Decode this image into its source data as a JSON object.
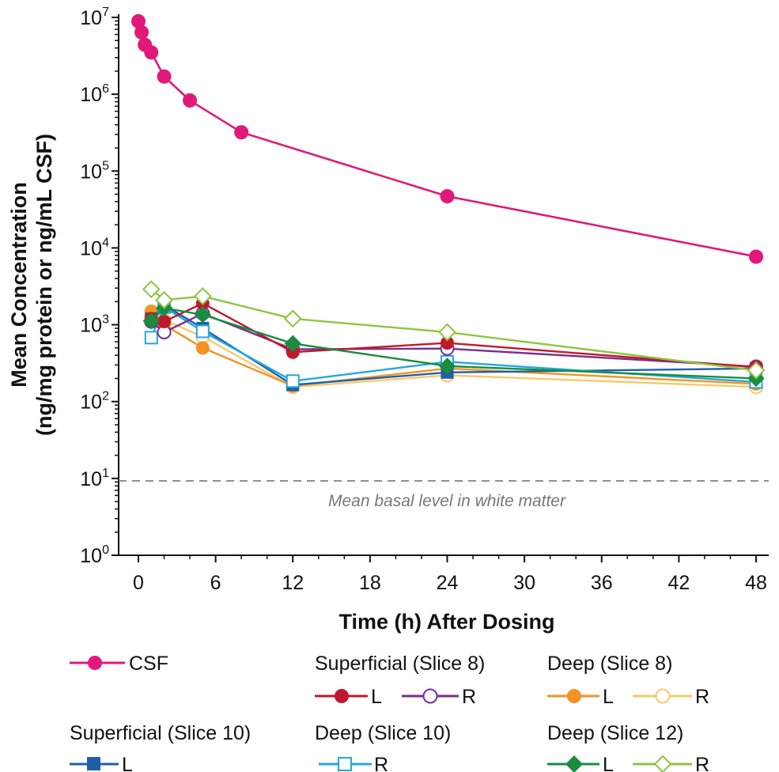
{
  "chart_data": {
    "type": "line",
    "xlabel": "Time (h) After Dosing",
    "ylabel_line1": "Mean Concentration",
    "ylabel_line2": "(ng/mg protein or ng/mL CSF)",
    "x_ticks": [
      0,
      6,
      12,
      18,
      24,
      30,
      36,
      42,
      48
    ],
    "x_range": [
      -1,
      49
    ],
    "y_scale": "log",
    "y_range": [
      1,
      10000000
    ],
    "y_ticks": [
      {
        "base": "10",
        "exp": "0",
        "value": 1
      },
      {
        "base": "10",
        "exp": "1",
        "value": 10
      },
      {
        "base": "10",
        "exp": "2",
        "value": 100
      },
      {
        "base": "10",
        "exp": "3",
        "value": 1000
      },
      {
        "base": "10",
        "exp": "4",
        "value": 10000
      },
      {
        "base": "10",
        "exp": "5",
        "value": 100000
      },
      {
        "base": "10",
        "exp": "6",
        "value": 1000000
      },
      {
        "base": "10",
        "exp": "7",
        "value": 10000000
      }
    ],
    "reference_line": {
      "value": 9.3,
      "label": "Mean basal level in white matter",
      "color": "#777777"
    },
    "grid": false,
    "series": [
      {
        "id": "csf",
        "color": "#e0197a",
        "marker": "circle",
        "filled": true,
        "points": [
          [
            0,
            8900000
          ],
          [
            0.25,
            6400000
          ],
          [
            0.5,
            4400000
          ],
          [
            1,
            3500000
          ],
          [
            2,
            1700000
          ],
          [
            4,
            830000
          ],
          [
            8,
            320000
          ],
          [
            24,
            47000
          ],
          [
            48,
            7700
          ]
        ]
      },
      {
        "id": "sup8-L",
        "color": "#c0182d",
        "marker": "circle",
        "filled": true,
        "points": [
          [
            1,
            1200
          ],
          [
            2,
            1100
          ],
          [
            5,
            1900
          ],
          [
            12,
            440
          ],
          [
            24,
            580
          ],
          [
            48,
            280
          ]
        ]
      },
      {
        "id": "sup8-R",
        "color": "#7b2d8e",
        "marker": "circle",
        "filled": false,
        "points": [
          [
            1,
            1100
          ],
          [
            2,
            800
          ],
          [
            5,
            1400
          ],
          [
            12,
            480
          ],
          [
            24,
            490
          ],
          [
            48,
            285
          ]
        ]
      },
      {
        "id": "deep8-L",
        "color": "#f39322",
        "marker": "circle",
        "filled": true,
        "points": [
          [
            1,
            1500
          ],
          [
            2,
            1000
          ],
          [
            5,
            500
          ],
          [
            12,
            160
          ],
          [
            24,
            270
          ],
          [
            48,
            170
          ]
        ]
      },
      {
        "id": "deep8-R",
        "color": "#f7c96e",
        "marker": "circle",
        "filled": false,
        "points": [
          [
            1,
            1300
          ],
          [
            2,
            1150
          ],
          [
            5,
            700
          ],
          [
            12,
            155
          ],
          [
            24,
            220
          ],
          [
            48,
            155
          ]
        ]
      },
      {
        "id": "sup10-L",
        "color": "#1f5fa8",
        "marker": "square",
        "filled": true,
        "points": [
          [
            1,
            1200
          ],
          [
            2,
            1800
          ],
          [
            5,
            900
          ],
          [
            12,
            165
          ],
          [
            24,
            240
          ],
          [
            48,
            270
          ]
        ]
      },
      {
        "id": "deep10-R",
        "color": "#22a7df",
        "marker": "square",
        "filled": false,
        "points": [
          [
            1,
            680
          ],
          [
            2,
            1700
          ],
          [
            5,
            820
          ],
          [
            12,
            185
          ],
          [
            24,
            330
          ],
          [
            48,
            180
          ]
        ]
      },
      {
        "id": "deep12-L",
        "color": "#1a8c3f",
        "marker": "diamond",
        "filled": true,
        "points": [
          [
            1,
            1120
          ],
          [
            2,
            1650
          ],
          [
            5,
            1350
          ],
          [
            12,
            570
          ],
          [
            24,
            290
          ],
          [
            48,
            200
          ]
        ]
      },
      {
        "id": "deep12-R",
        "color": "#8cc63f",
        "marker": "diamond",
        "filled": false,
        "points": [
          [
            1,
            2900
          ],
          [
            2,
            2100
          ],
          [
            5,
            2350
          ],
          [
            12,
            1200
          ],
          [
            24,
            800
          ],
          [
            48,
            255
          ]
        ]
      }
    ]
  },
  "legend": {
    "csf": "CSF",
    "sup8_title": "Superficial (Slice 8)",
    "deep8_title": "Deep (Slice 8)",
    "sup10_title": "Superficial (Slice 10)",
    "deep10_title": "Deep (Slice 10)",
    "deep12_title": "Deep (Slice 12)",
    "left": "L",
    "right": "R"
  }
}
